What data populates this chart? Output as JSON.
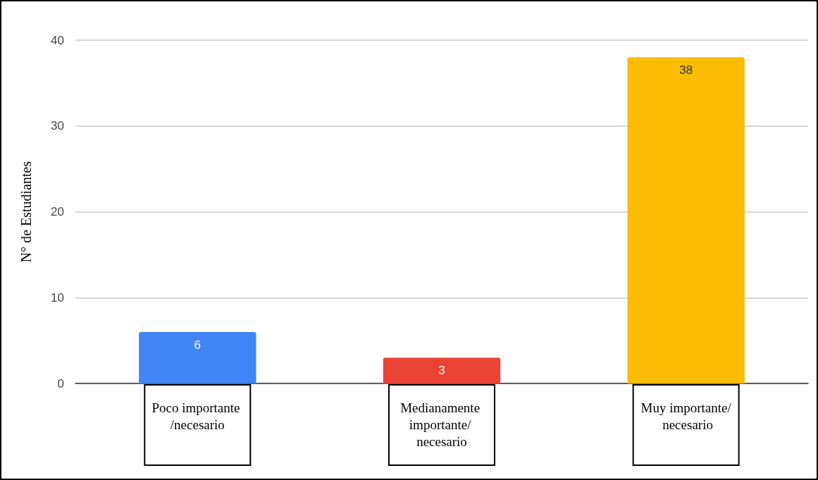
{
  "chart_data": {
    "type": "bar",
    "ylabel": "N° de Estudiantes",
    "categories": [
      "Poco importante /necesario",
      "Medianamente importante/ necesario",
      "Muy importante/ necesario"
    ],
    "values": [
      6,
      3,
      38
    ],
    "colors": [
      "#4285f4",
      "#ea4335",
      "#fbbc04"
    ],
    "ylim": [
      0,
      40
    ],
    "yticks": [
      0,
      10,
      20,
      30,
      40
    ],
    "grid": "y",
    "data_labels": true
  }
}
